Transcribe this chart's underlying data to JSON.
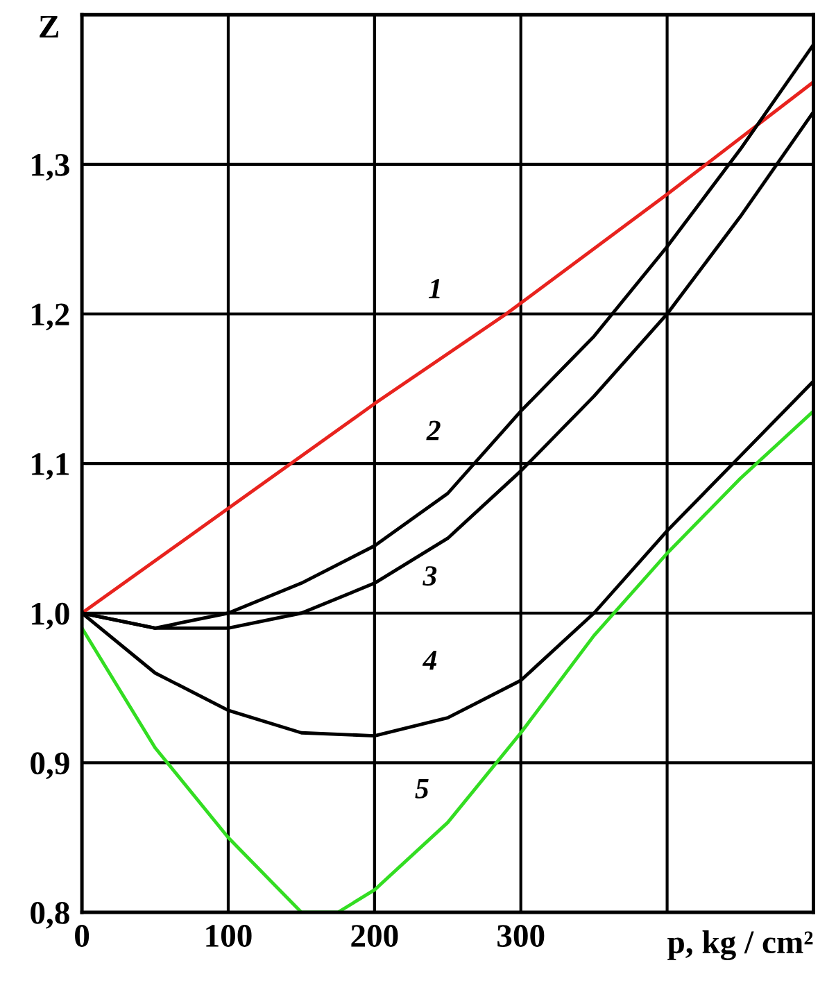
{
  "chart_data": {
    "type": "line",
    "xlabel": "p, kg / cm²",
    "ylabel": "Z",
    "xlim": [
      0,
      500
    ],
    "ylim": [
      0.8,
      1.4
    ],
    "xticks": [
      0,
      100,
      200,
      300,
      {
        "value": 400,
        "label": null
      }
    ],
    "yticks": [
      {
        "value": 0.8,
        "label": "0,8"
      },
      {
        "value": 0.9,
        "label": "0,9"
      },
      {
        "value": 1.0,
        "label": "1,0"
      },
      {
        "value": 1.1,
        "label": "1,1"
      },
      {
        "value": 1.2,
        "label": "1,2"
      },
      {
        "value": 1.3,
        "label": "1,3"
      }
    ],
    "grid": true,
    "line_style": "solid",
    "x": [
      0,
      50,
      100,
      150,
      200,
      250,
      300,
      350,
      400,
      450,
      500
    ],
    "series": [
      {
        "name": "1",
        "color": "#e8231e",
        "x": [
          0,
          100,
          200,
          290,
          400,
          500
        ],
        "values": [
          1.0,
          1.07,
          1.14,
          1.2,
          1.28,
          1.355
        ]
      },
      {
        "name": "2",
        "color": "#000000",
        "values": [
          1.0,
          0.99,
          1.0,
          1.02,
          1.045,
          1.08,
          1.135,
          1.185,
          1.245,
          1.31,
          1.38
        ]
      },
      {
        "name": "3",
        "color": "#000000",
        "values": [
          1.0,
          0.99,
          0.99,
          1.0,
          1.02,
          1.05,
          1.095,
          1.145,
          1.2,
          1.265,
          1.335
        ]
      },
      {
        "name": "4",
        "color": "#000000",
        "values": [
          1.0,
          0.96,
          0.935,
          0.92,
          0.918,
          0.93,
          0.955,
          1.0,
          1.055,
          1.105,
          1.155
        ]
      },
      {
        "name": "5",
        "color": "#33dd22",
        "x": [
          0,
          50,
          100,
          150,
          175,
          200,
          250,
          300,
          350,
          400,
          450,
          500
        ],
        "values": [
          0.99,
          0.91,
          0.85,
          0.8,
          0.8,
          0.815,
          0.86,
          0.92,
          0.985,
          1.04,
          1.09,
          1.135
        ]
      }
    ]
  }
}
